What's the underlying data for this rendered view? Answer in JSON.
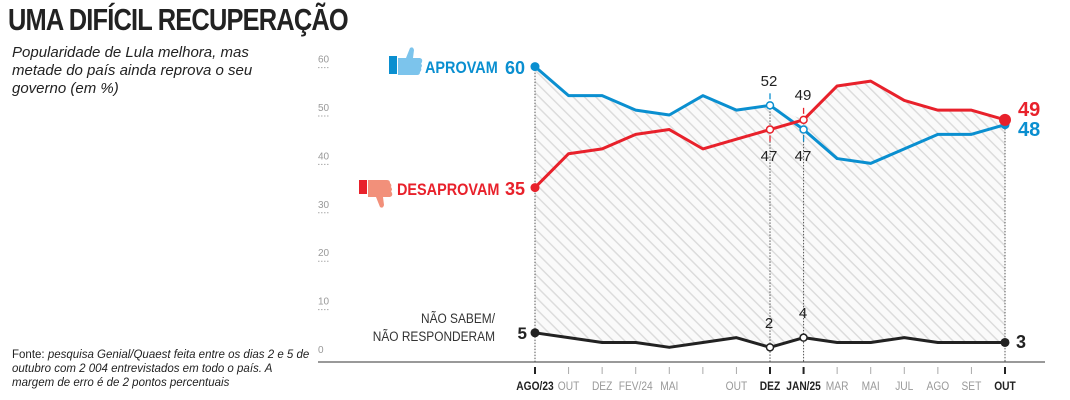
{
  "title": "UMA DIFÍCIL RECUPERAÇÃO",
  "subtitle": "Popularidade de Lula melhora, mas metade do país ainda reprova o seu governo (em %)",
  "source_label": "Fonte:",
  "source_text": "pesquisa Genial/Quaest feita entre os dias 2 e 5 de outubro com 2 004 entrevistados em todo o país. A margem de erro é de 2 pontos percentuais",
  "chart_data": {
    "type": "line",
    "title": "UMA DIFÍCIL RECUPERAÇÃO",
    "ylabel": "%",
    "ylim": [
      0,
      60
    ],
    "yticks": [
      "0",
      "10",
      "20",
      "30",
      "40",
      "50",
      "60"
    ],
    "categories": [
      "AGO/23",
      "OUT",
      "DEZ",
      "FEV/24",
      "MAI",
      "",
      "OUT",
      "DEZ",
      "JAN/25",
      "MAR",
      "MAI",
      "JUL",
      "AGO",
      "SET",
      "OUT"
    ],
    "highlighted_categories": [
      0,
      7,
      8,
      14
    ],
    "series": [
      {
        "name": "APROVAM",
        "color": "#0a8fd0",
        "values": [
          60,
          54,
          54,
          51,
          50,
          54,
          51,
          52,
          47,
          41,
          40,
          43,
          46,
          46,
          48
        ]
      },
      {
        "name": "DESAPROVAM",
        "color": "#e8212b",
        "values": [
          35,
          42,
          43,
          46,
          47,
          43,
          45,
          47,
          49,
          56,
          57,
          53,
          51,
          51,
          49
        ]
      },
      {
        "name": "NÃO SABEM/ NÃO RESPONDERAM",
        "color": "#222222",
        "values": [
          5,
          4,
          3,
          3,
          2,
          3,
          4,
          2,
          4,
          3,
          3,
          4,
          3,
          3,
          3
        ]
      }
    ],
    "legend": {
      "approve": {
        "label": "APROVAM",
        "value": "60",
        "end": "48",
        "icon": "thumbs-up-icon"
      },
      "disapprove": {
        "label": "DESAPROVAM",
        "value": "35",
        "end": "49",
        "icon": "thumbs-down-icon"
      },
      "unknown": {
        "label1": "NÃO SABEM/",
        "label2": "NÃO RESPONDERAM",
        "value": "5",
        "end": "3"
      }
    },
    "annotations": {
      "dez_approve": "52",
      "dez_disapprove": "47",
      "dez_unknown": "2",
      "jan_approve": "47",
      "jan_disapprove": "49",
      "jan_unknown": "4"
    }
  }
}
